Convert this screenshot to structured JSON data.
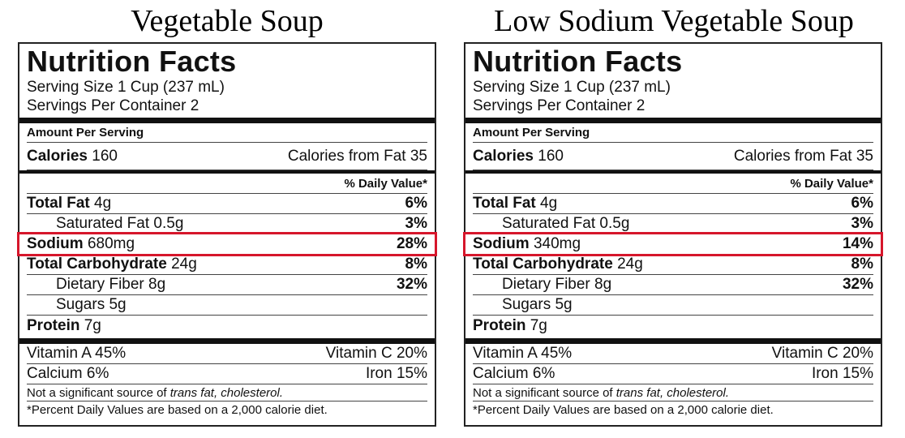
{
  "colors": {
    "highlight": "#d6162b",
    "border": "#222222"
  },
  "labels": [
    {
      "heading": "Vegetable Soup",
      "title": "Nutrition Facts",
      "serving_size": "Serving Size 1 Cup (237 mL)",
      "servings_per_container": "Servings Per Container 2",
      "amount_per_serving": "Amount Per Serving",
      "calories_label": "Calories",
      "calories_value": "160",
      "calories_from_fat": "Calories from Fat 35",
      "daily_value_header": "% Daily Value*",
      "total_fat_label": "Total Fat",
      "total_fat_value": "4g",
      "total_fat_pct": "6%",
      "sat_fat": "Saturated Fat 0.5g",
      "sat_fat_pct": "3%",
      "sodium_label": "Sodium",
      "sodium_value": "680mg",
      "sodium_pct": "28%",
      "carb_label": "Total Carbohydrate",
      "carb_value": "24g",
      "carb_pct": "8%",
      "fiber": "Dietary Fiber 8g",
      "fiber_pct": "32%",
      "sugars": "Sugars 5g",
      "protein_label": "Protein",
      "protein_value": "7g",
      "vitamin_a": "Vitamin A 45%",
      "vitamin_c": "Vitamin C 20%",
      "calcium": "Calcium 6%",
      "iron": "Iron 15%",
      "note_prefix": "Not a significant source of ",
      "note_italic": "trans fat, cholesterol.",
      "footnote": "*Percent Daily Values are based on a 2,000 calorie diet."
    },
    {
      "heading": "Low Sodium Vegetable Soup",
      "title": "Nutrition Facts",
      "serving_size": "Serving Size 1 Cup (237 mL)",
      "servings_per_container": "Servings Per Container 2",
      "amount_per_serving": "Amount Per Serving",
      "calories_label": "Calories",
      "calories_value": "160",
      "calories_from_fat": "Calories from Fat 35",
      "daily_value_header": "% Daily Value*",
      "total_fat_label": "Total Fat",
      "total_fat_value": "4g",
      "total_fat_pct": "6%",
      "sat_fat": "Saturated Fat 0.5g",
      "sat_fat_pct": "3%",
      "sodium_label": "Sodium",
      "sodium_value": "340mg",
      "sodium_pct": "14%",
      "carb_label": "Total Carbohydrate",
      "carb_value": "24g",
      "carb_pct": "8%",
      "fiber": "Dietary Fiber 8g",
      "fiber_pct": "32%",
      "sugars": "Sugars 5g",
      "protein_label": "Protein",
      "protein_value": "7g",
      "vitamin_a": "Vitamin A 45%",
      "vitamin_c": "Vitamin C 20%",
      "calcium": "Calcium 6%",
      "iron": "Iron 15%",
      "note_prefix": "Not a significant source of ",
      "note_italic": "trans fat, cholesterol.",
      "footnote": "*Percent Daily Values are based on a 2,000 calorie diet."
    }
  ]
}
